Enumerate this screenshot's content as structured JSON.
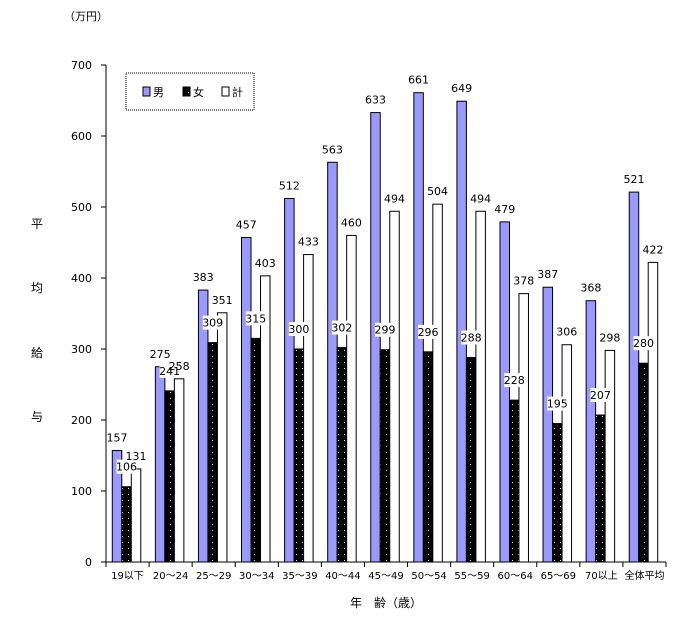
{
  "chart_data": {
    "type": "bar",
    "unit_label": "（万円）",
    "ylabel_chars": [
      "平",
      "均",
      "給",
      "与"
    ],
    "xlabel": "年　齢（歳）",
    "ylim": [
      0,
      700
    ],
    "yticks": [
      0,
      100,
      200,
      300,
      400,
      500,
      600,
      700
    ],
    "grid": false,
    "legend_position": "top-left",
    "categories": [
      "19以下",
      "20～24",
      "25～29",
      "30～34",
      "35～39",
      "40～44",
      "45～49",
      "50～54",
      "55～59",
      "60～64",
      "65～69",
      "70以上",
      "全体平均"
    ],
    "series": [
      {
        "name": "男",
        "color": "#9999ff",
        "pattern": "solid",
        "values": [
          157,
          275,
          383,
          457,
          512,
          563,
          633,
          661,
          649,
          479,
          387,
          368,
          521
        ]
      },
      {
        "name": "女",
        "color": "#000000",
        "pattern": "dots",
        "values": [
          106,
          241,
          309,
          315,
          300,
          302,
          299,
          296,
          288,
          228,
          195,
          207,
          280
        ]
      },
      {
        "name": "計",
        "color": "#ffffff",
        "pattern": "outline",
        "values": [
          131,
          258,
          351,
          403,
          433,
          460,
          494,
          504,
          494,
          378,
          306,
          298,
          422
        ]
      }
    ]
  }
}
